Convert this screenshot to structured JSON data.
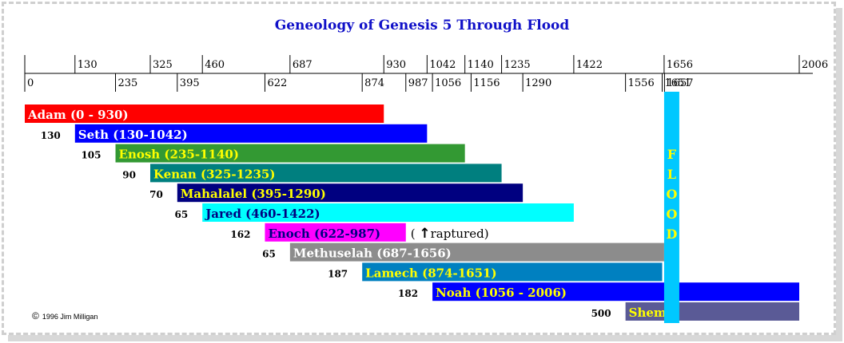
{
  "page": {
    "title": "Geneology of Genesis 5 Through Flood",
    "copyright_symbol": "©",
    "copyright": "1996 Jim Milligan"
  },
  "chart_data": {
    "type": "bar",
    "orientation": "horizontal-timeline",
    "title": "Geneology of Genesis 5 Through Flood",
    "axis": {
      "min": 0,
      "max": 2006,
      "top_ticks": [
        130,
        325,
        460,
        687,
        930,
        1042,
        1140,
        1235,
        1422,
        1656,
        2006
      ],
      "bottom_ticks": [
        0,
        235,
        395,
        622,
        874,
        987,
        1056,
        1156,
        1290,
        1556,
        1651,
        1657
      ]
    },
    "bars": [
      {
        "name": "Adam",
        "label": "Adam  (0 - 930)",
        "start": 0,
        "end": 930,
        "age_at_son": "",
        "color": "#ff0000",
        "text_color": "#ffffff"
      },
      {
        "name": "Seth",
        "label": "Seth (130-1042)",
        "start": 130,
        "end": 1042,
        "age_at_son": "130",
        "color": "#0000ff",
        "text_color": "#ffffff"
      },
      {
        "name": "Enosh",
        "label": "Enosh (235-1140)",
        "start": 235,
        "end": 1140,
        "age_at_son": "105",
        "color": "#339933",
        "text_color": "#ffff00"
      },
      {
        "name": "Kenan",
        "label": "Kenan (325-1235)",
        "start": 325,
        "end": 1235,
        "age_at_son": "90",
        "color": "#007f7f",
        "text_color": "#ffff00"
      },
      {
        "name": "Mahalalel",
        "label": "Mahalalel (395-1290)",
        "start": 395,
        "end": 1290,
        "age_at_son": "70",
        "color": "#000080",
        "text_color": "#ffff00"
      },
      {
        "name": "Jared",
        "label": "Jared (460-1422)",
        "start": 460,
        "end": 1422,
        "age_at_son": "65",
        "color": "#00ffff",
        "text_color": "#000080"
      },
      {
        "name": "Enoch",
        "label": "Enoch (622-987)",
        "start": 622,
        "end": 987,
        "age_at_son": "162",
        "color": "#ff00ff",
        "text_color": "#000080",
        "note": "raptured"
      },
      {
        "name": "Methuselah",
        "label": "Methuselah (687-1656)",
        "start": 687,
        "end": 1656,
        "age_at_son": "65",
        "color": "#8c8c8c",
        "text_color": "#ffffff"
      },
      {
        "name": "Lamech",
        "label": "Lamech (874-1651)",
        "start": 874,
        "end": 1651,
        "age_at_son": "187",
        "color": "#0080c0",
        "text_color": "#ffff00"
      },
      {
        "name": "Noah",
        "label": "Noah (1056 - 2006)",
        "start": 1056,
        "end": 2006,
        "age_at_son": "182",
        "color": "#0000ff",
        "text_color": "#ffff00"
      },
      {
        "name": "Shem",
        "label": "Shem",
        "start": 1556,
        "end": 2006,
        "age_at_son": "500",
        "color": "#5a5a96",
        "text_color": "#ffff00"
      }
    ],
    "flood": {
      "label": "FLOOD",
      "year_start": 1656,
      "year_end": 1657,
      "color": "#00c8ff",
      "text_color": "#ffff00"
    },
    "note_prefix": "(",
    "note_arrow": "↑"
  }
}
